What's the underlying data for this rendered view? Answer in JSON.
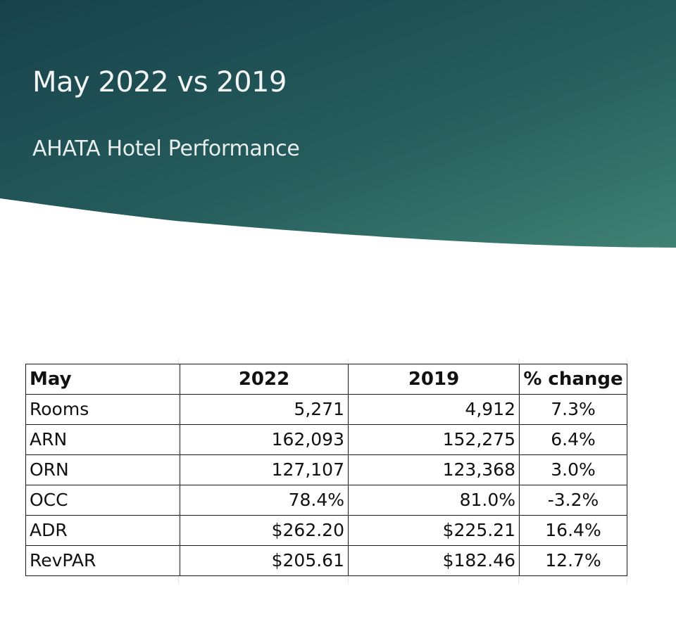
{
  "slide": {
    "title": "May 2022 vs 2019",
    "subtitle": "AHATA Hotel Performance"
  },
  "colors": {
    "banner_dark": "#1b4a50",
    "banner_light": "#3a7a6c",
    "text_light": "#f2f5f4"
  },
  "table": {
    "headers": [
      "May",
      "2022",
      "2019",
      "% change"
    ],
    "rows": [
      {
        "label": "Rooms",
        "y2022": "5,271",
        "y2019": "4,912",
        "change": "7.3%"
      },
      {
        "label": "ARN",
        "y2022": "162,093",
        "y2019": "152,275",
        "change": "6.4%"
      },
      {
        "label": "ORN",
        "y2022": "127,107",
        "y2019": "123,368",
        "change": "3.0%"
      },
      {
        "label": "OCC",
        "y2022": "78.4%",
        "y2019": "81.0%",
        "change": "-3.2%"
      },
      {
        "label": "ADR",
        "y2022": "$262.20",
        "y2019": "$225.21",
        "change": "16.4%"
      },
      {
        "label": "RevPAR",
        "y2022": "$205.61",
        "y2019": "$182.46",
        "change": "12.7%"
      }
    ]
  }
}
